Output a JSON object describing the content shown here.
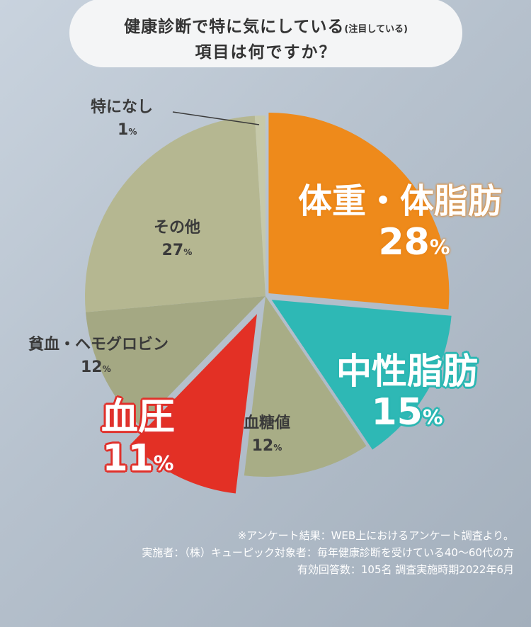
{
  "title": {
    "line1": "健康診断で特に気にしている",
    "line1_note": "(注目している)",
    "line2": "項目は何ですか？"
  },
  "chart_data": {
    "type": "pie",
    "start": "12 o'clock, clockwise",
    "slices": [
      {
        "label": "体重・体脂肪",
        "value": 28,
        "display": "28",
        "color": "#ee8a1b"
      },
      {
        "label": "中性脂肪",
        "value": 15,
        "display": "15",
        "color": "#2eb8b5"
      },
      {
        "label": "血糖値",
        "value": 12,
        "display": "12",
        "color": "#a8ad86"
      },
      {
        "label": "血圧",
        "value": 11,
        "display": "11",
        "color": "#e33025"
      },
      {
        "label": "貧血・ヘモグロビン",
        "value": 12,
        "display": "12",
        "color": "#a4a883"
      },
      {
        "label": "その他",
        "value": 27,
        "display": "27",
        "color": "#b5b791"
      },
      {
        "label": "特になし",
        "value": 1,
        "display": "1",
        "color": "#c6c9aa"
      }
    ],
    "unit": "%"
  },
  "labels": {
    "weight_name": "体重・体脂肪",
    "weight_pct": "28",
    "neutral_name": "中性脂肪",
    "neutral_pct": "15",
    "sugar_name": "血糖値",
    "sugar_pct": "12",
    "bp_name": "血圧",
    "bp_pct": "11",
    "anemia_name": "貧血・ヘモグロビン",
    "anemia_pct": "12",
    "other_name": "その他",
    "other_pct": "27",
    "none_name": "特になし",
    "none_pct": "1",
    "pct_sign": "%"
  },
  "footnote": {
    "line1": "※アンケート結果：WEB上におけるアンケート調査より。",
    "line2": "実施者：（株）キューピック対象者：毎年健康診断を受けている40〜60代の方",
    "line3": "有効回答数：105名 調査実施時期2022年6月"
  }
}
